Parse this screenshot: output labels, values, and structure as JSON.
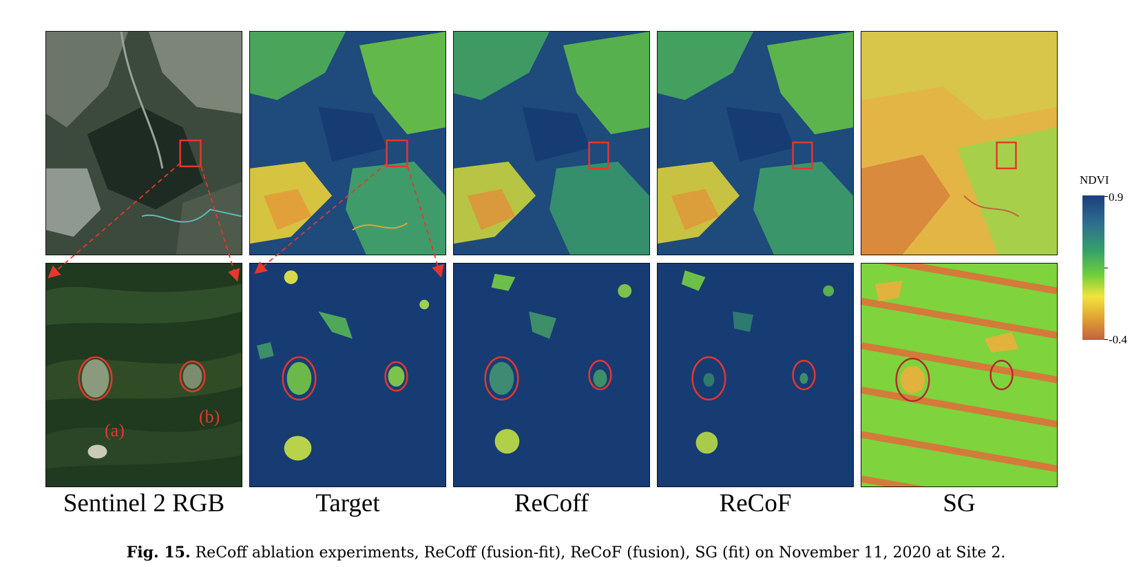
{
  "figure": {
    "columns": [
      {
        "label": "Sentinel 2 RGB"
      },
      {
        "label": "Target"
      },
      {
        "label": "ReCoff"
      },
      {
        "label": "ReCoF"
      },
      {
        "label": "SG"
      }
    ],
    "zoom_annotations": {
      "a": "(a)",
      "b": "(b)"
    },
    "caption": {
      "label": "Fig. 15.",
      "text": "ReCoff ablation experiments, ReCoff (fusion-fit), ReCoF (fusion), SG (fit) on November 11, 2020 at Site 2."
    },
    "colorbar": {
      "title": "NDVI",
      "max_label": "0.9",
      "min_label": "-0.4",
      "max": 0.9,
      "min": -0.4,
      "colors": [
        "#1b3f7c",
        "#2f6f8e",
        "#35a06a",
        "#6fce3c",
        "#f2e43d",
        "#e0a236",
        "#c4603c"
      ]
    },
    "highlight_color": "#e8362b"
  }
}
